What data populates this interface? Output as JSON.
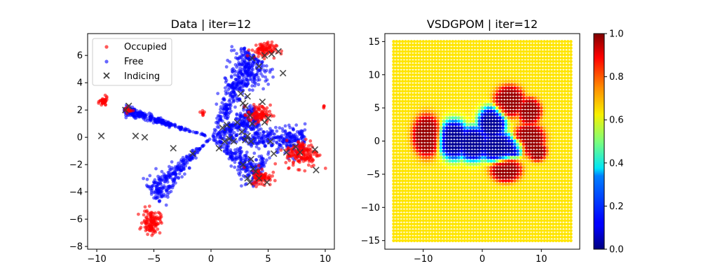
{
  "chart_data": [
    {
      "type": "scatter",
      "title": "Data | iter=12",
      "xlabel": "",
      "ylabel": "",
      "xlim": [
        -10.8,
        10.8
      ],
      "ylim": [
        -8.2,
        7.6
      ],
      "xticks": [
        -10,
        -5,
        0,
        5,
        10
      ],
      "yticks": [
        -8,
        -6,
        -4,
        -2,
        0,
        2,
        4,
        6
      ],
      "legend": {
        "placement": "top-left",
        "entries": [
          "Occupied",
          "Free",
          "Indicing"
        ]
      },
      "series": [
        {
          "name": "Occupied",
          "color": "#ff0000",
          "marker": "dot",
          "clusters": [
            {
              "center": [
                -9.4,
                2.6
              ],
              "spread": [
                0.3,
                0.3
              ],
              "count": 40
            },
            {
              "center": [
                -7.3,
                2.0
              ],
              "spread": [
                0.3,
                0.2
              ],
              "count": 20
            },
            {
              "center": [
                -5.2,
                -6.2
              ],
              "spread": [
                0.7,
                0.8
              ],
              "count": 120
            },
            {
              "center": [
                4.6,
                6.4
              ],
              "spread": [
                1.0,
                0.5
              ],
              "count": 90
            },
            {
              "center": [
                4.2,
                1.7
              ],
              "spread": [
                0.9,
                0.6
              ],
              "count": 90
            },
            {
              "center": [
                8.0,
                -1.2
              ],
              "spread": [
                1.3,
                0.9
              ],
              "count": 160
            },
            {
              "center": [
                4.4,
                -2.9
              ],
              "spread": [
                0.8,
                0.6
              ],
              "count": 80
            },
            {
              "center": [
                -0.7,
                1.8
              ],
              "spread": [
                0.2,
                0.2
              ],
              "count": 8
            },
            {
              "center": [
                9.9,
                2.3
              ],
              "spread": [
                0.1,
                0.1
              ],
              "count": 4
            }
          ]
        },
        {
          "name": "Free",
          "color": "#0000ff",
          "marker": "dot",
          "rays": [
            {
              "to": [
                -7.6,
                2.0
              ],
              "spread": 0.18,
              "count": 260
            },
            {
              "to": [
                -5.2,
                -4.2
              ],
              "spread": 0.55,
              "count": 260
            },
            {
              "to": [
                3.8,
                6.0
              ],
              "spread": 0.9,
              "count": 420
            },
            {
              "to": [
                4.1,
                1.5
              ],
              "spread": 0.6,
              "count": 220
            },
            {
              "to": [
                8.2,
                -0.3
              ],
              "spread": 0.6,
              "count": 300
            },
            {
              "to": [
                4.4,
                -2.7
              ],
              "spread": 0.7,
              "count": 240
            }
          ]
        },
        {
          "name": "Indicing",
          "color": "#3a3a3a",
          "marker": "x",
          "points": [
            [
              -9.6,
              0.1
            ],
            [
              -7.5,
              2.0
            ],
            [
              -7.2,
              2.3
            ],
            [
              -6.6,
              0.1
            ],
            [
              -5.8,
              0.0
            ],
            [
              -3.3,
              -0.8
            ],
            [
              -1.6,
              -1.2
            ],
            [
              0.7,
              -0.8
            ],
            [
              1.0,
              0.7
            ],
            [
              1.4,
              0.9
            ],
            [
              1.2,
              -0.3
            ],
            [
              1.6,
              -0.1
            ],
            [
              2.0,
              -0.3
            ],
            [
              2.3,
              1.1
            ],
            [
              2.6,
              3.2
            ],
            [
              2.8,
              2.5
            ],
            [
              3.0,
              2.3
            ],
            [
              3.2,
              3.0
            ],
            [
              2.7,
              0.4
            ],
            [
              3.4,
              1.6
            ],
            [
              3.6,
              1.0
            ],
            [
              3.2,
              0.1
            ],
            [
              3.0,
              -0.2
            ],
            [
              3.5,
              -0.3
            ],
            [
              2.8,
              -2.0
            ],
            [
              3.5,
              -1.6
            ],
            [
              3.9,
              -2.5
            ],
            [
              3.7,
              -2.3
            ],
            [
              3.2,
              -3.0
            ],
            [
              3.4,
              -3.3
            ],
            [
              4.2,
              -3.0
            ],
            [
              4.9,
              -3.3
            ],
            [
              4.7,
              1.1
            ],
            [
              5.0,
              1.4
            ],
            [
              4.5,
              2.6
            ],
            [
              5.2,
              -0.3
            ],
            [
              5.5,
              -1.2
            ],
            [
              6.6,
              -1.1
            ],
            [
              7.4,
              -0.7
            ],
            [
              7.8,
              -1.1
            ],
            [
              9.1,
              -0.9
            ],
            [
              9.2,
              -2.4
            ],
            [
              3.6,
              5.8
            ],
            [
              4.7,
              6.0
            ],
            [
              5.3,
              6.1
            ],
            [
              5.9,
              6.3
            ],
            [
              4.2,
              5.2
            ],
            [
              6.3,
              4.7
            ]
          ]
        }
      ]
    },
    {
      "type": "heatmap",
      "title": "VSDGPOM | iter=12",
      "xlabel": "",
      "ylabel": "",
      "xlim": [
        -16.5,
        16.5
      ],
      "ylim": [
        -16.3,
        16.2
      ],
      "xticks": [
        -10,
        0,
        10
      ],
      "yticks": [
        -15,
        -10,
        -5,
        0,
        5,
        10,
        15
      ],
      "grid_range": [
        -15,
        15
      ],
      "grid_step": 0.5,
      "prior": 0.65,
      "colormap": "jet",
      "colorbar": {
        "min": 0.0,
        "max": 1.0,
        "ticks": [
          "0.0",
          "0.2",
          "0.4",
          "0.6",
          "0.8",
          "1.0"
        ]
      },
      "occupied_regions": [
        {
          "center": [
            -9.4,
            0.8
          ],
          "radius": [
            2.4,
            3.2
          ]
        },
        {
          "center": [
            4.6,
            6.0
          ],
          "radius": [
            2.6,
            2.4
          ]
        },
        {
          "center": [
            8.0,
            4.5
          ],
          "radius": [
            2.0,
            2.0
          ]
        },
        {
          "center": [
            8.0,
            0.3
          ],
          "radius": [
            2.6,
            2.4
          ]
        },
        {
          "center": [
            9.3,
            -1.5
          ],
          "radius": [
            1.6,
            1.5
          ]
        },
        {
          "center": [
            4.0,
            -4.4
          ],
          "radius": [
            2.6,
            1.8
          ]
        }
      ],
      "free_regions": [
        {
          "center": [
            -4.8,
            0.2
          ],
          "radius": [
            2.6,
            3.0
          ]
        },
        {
          "center": [
            -1.6,
            -0.4
          ],
          "radius": [
            3.0,
            2.6
          ]
        },
        {
          "center": [
            1.6,
            2.6
          ],
          "radius": [
            2.4,
            2.6
          ]
        },
        {
          "center": [
            2.4,
            -0.8
          ],
          "radius": [
            3.2,
            2.3
          ]
        },
        {
          "center": [
            5.2,
            -1.0
          ],
          "radius": [
            1.8,
            1.4
          ]
        }
      ]
    }
  ]
}
